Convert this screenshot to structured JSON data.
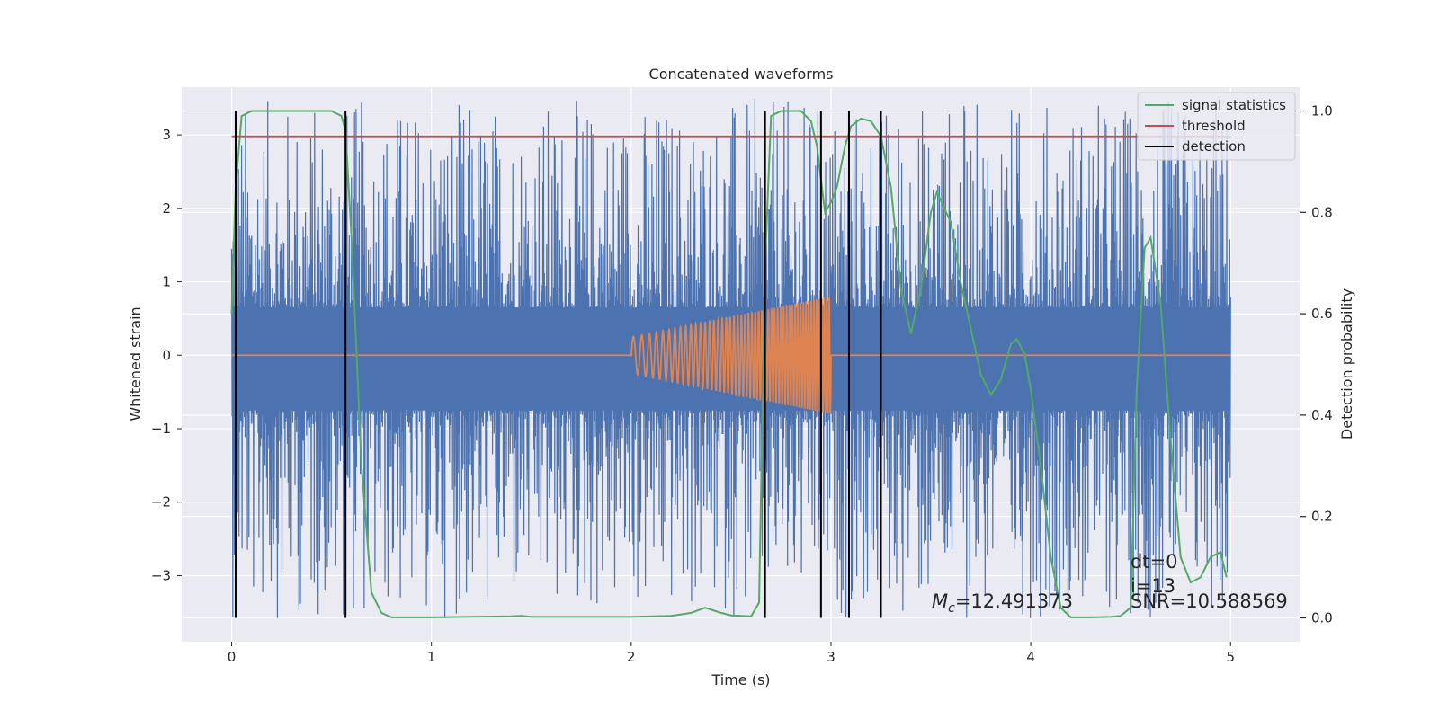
{
  "chart_data": {
    "type": "line",
    "title": "Concatenated waveforms",
    "xlabel": "Time (s)",
    "ylabel": "Whitened strain",
    "y2label": "Detection probability",
    "xlim": [
      -0.25,
      5.35
    ],
    "ylim": [
      -3.9,
      3.65
    ],
    "y2lim": [
      -0.047,
      1.047
    ],
    "xticks": [
      0,
      1,
      2,
      3,
      4,
      5
    ],
    "yticks": [
      -3,
      -2,
      -1,
      0,
      1,
      2,
      3
    ],
    "y2ticks": [
      0.0,
      0.2,
      0.4,
      0.6,
      0.8,
      1.0
    ],
    "grid": true,
    "legend_position": "top-right",
    "legend": [
      "signal statistics",
      "threshold",
      "detection"
    ],
    "colors": {
      "strain": "#4c72b0",
      "injection": "#dd8452",
      "signal_statistics": "#55a868",
      "threshold": "#c44e52",
      "detection": "#000000",
      "plot_background": "#eaeaf2",
      "grid": "#ffffff"
    },
    "whitened_strain": {
      "x_range": [
        0,
        5
      ],
      "band": [
        -0.75,
        0.65
      ],
      "spike_min": -3.6,
      "spike_max": 3.5
    },
    "injection": {
      "x_start": 2.0,
      "x_end": 3.0,
      "amplitude_start": 0.25,
      "amplitude_end": 0.8
    },
    "threshold": {
      "value": 0.95,
      "x_range": [
        0,
        5
      ]
    },
    "detections": [
      0.02,
      0.57,
      2.67,
      2.95,
      3.09,
      3.25
    ],
    "signal_statistics": {
      "x": [
        0.0,
        0.02,
        0.05,
        0.1,
        0.5,
        0.55,
        0.57,
        0.6,
        0.65,
        0.7,
        0.75,
        0.8,
        1.0,
        1.4,
        1.45,
        1.5,
        2.0,
        2.2,
        2.3,
        2.37,
        2.45,
        2.5,
        2.6,
        2.64,
        2.67,
        2.7,
        2.75,
        2.85,
        2.9,
        2.93,
        2.97,
        3.0,
        3.03,
        3.07,
        3.1,
        3.15,
        3.2,
        3.25,
        3.3,
        3.35,
        3.4,
        3.45,
        3.5,
        3.53,
        3.6,
        3.65,
        3.7,
        3.75,
        3.8,
        3.85,
        3.9,
        3.93,
        3.97,
        4.0,
        4.05,
        4.1,
        4.15,
        4.2,
        4.3,
        4.4,
        4.45,
        4.5,
        4.53,
        4.57,
        4.6,
        4.65,
        4.7,
        4.75,
        4.8,
        4.85,
        4.9,
        4.95,
        4.98
      ],
      "values": [
        0.6,
        0.85,
        0.99,
        1.0,
        1.0,
        0.99,
        0.96,
        0.75,
        0.3,
        0.05,
        0.01,
        0.001,
        0.001,
        0.003,
        0.004,
        0.002,
        0.002,
        0.004,
        0.01,
        0.02,
        0.01,
        0.005,
        0.003,
        0.03,
        0.7,
        0.99,
        1.0,
        1.0,
        0.98,
        0.93,
        0.8,
        0.82,
        0.85,
        0.93,
        0.97,
        0.985,
        0.98,
        0.95,
        0.85,
        0.65,
        0.56,
        0.65,
        0.8,
        0.84,
        0.78,
        0.66,
        0.57,
        0.48,
        0.44,
        0.47,
        0.54,
        0.55,
        0.52,
        0.45,
        0.3,
        0.12,
        0.02,
        0.001,
        0.001,
        0.002,
        0.004,
        0.02,
        0.45,
        0.73,
        0.75,
        0.62,
        0.35,
        0.12,
        0.07,
        0.08,
        0.12,
        0.13,
        0.08
      ]
    },
    "annotations": {
      "mc_label": "=12.491373",
      "dt": "dt=0",
      "i": "i=13",
      "snr": "SNR=10.588569"
    }
  }
}
